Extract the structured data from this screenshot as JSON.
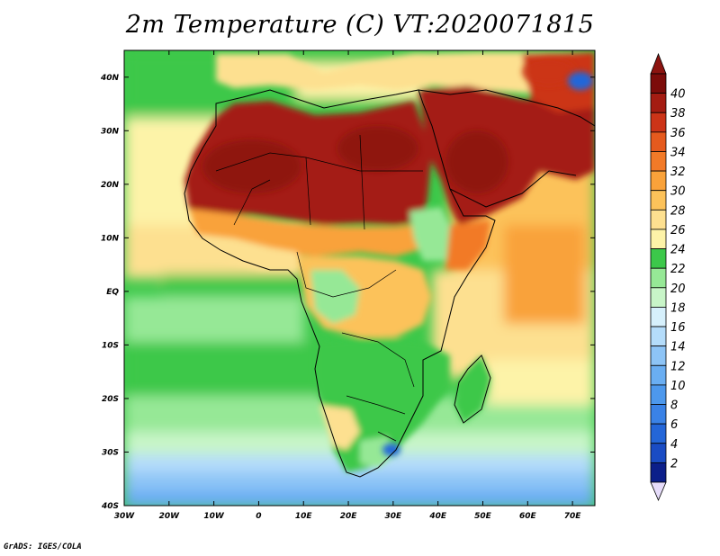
{
  "title": "2m Temperature (C) VT:2020071815",
  "footer": "GrADS: IGES/COLA",
  "map": {
    "lon_range": [
      -30,
      75
    ],
    "lat_range": [
      -40,
      45
    ],
    "x_ticks": [
      "30W",
      "20W",
      "10W",
      "0",
      "10E",
      "20E",
      "30E",
      "40E",
      "50E",
      "60E",
      "70E"
    ],
    "x_tick_values": [
      -30,
      -20,
      -10,
      0,
      10,
      20,
      30,
      40,
      50,
      60,
      70
    ],
    "y_ticks": [
      "40S",
      "30S",
      "20S",
      "10S",
      "EQ",
      "10N",
      "20N",
      "30N",
      "40N"
    ],
    "y_tick_values": [
      -40,
      -30,
      -20,
      -10,
      0,
      10,
      20,
      30,
      40
    ]
  },
  "colorbar": {
    "labels": [
      "2",
      "4",
      "6",
      "8",
      "10",
      "12",
      "14",
      "16",
      "18",
      "20",
      "22",
      "24",
      "26",
      "28",
      "30",
      "32",
      "34",
      "36",
      "38",
      "40"
    ],
    "colors": [
      "#0c1f8a",
      "#1a4cc4",
      "#2466d8",
      "#3a82e6",
      "#4d98ec",
      "#6aaef2",
      "#8dc4f6",
      "#b4dcfa",
      "#d6f0fc",
      "#c8f5c8",
      "#96e896",
      "#3cc84a",
      "#fdf3a8",
      "#fde090",
      "#fcc25a",
      "#f9a23a",
      "#f27a28",
      "#e55a1e",
      "#cc3418",
      "#a41c12",
      "#7c0c0a"
    ],
    "under_color": "#e6dcfa",
    "over_color": "#8c1410"
  }
}
